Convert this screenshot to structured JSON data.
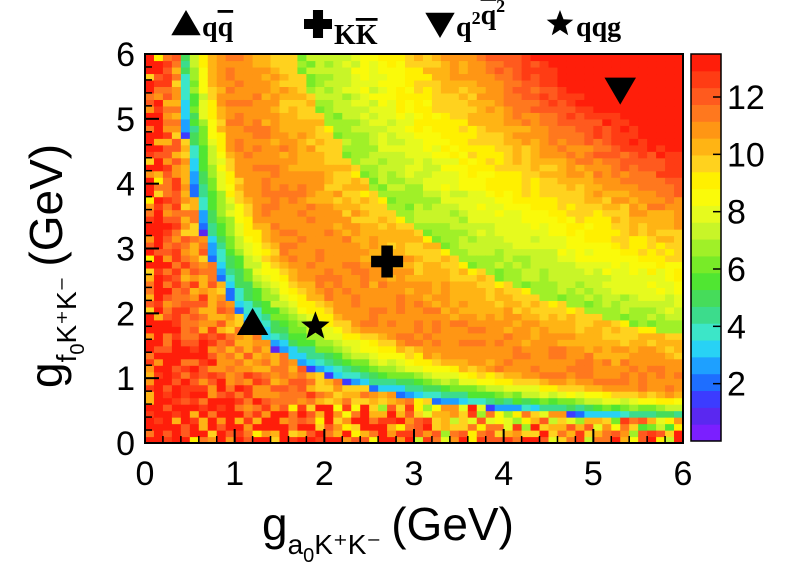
{
  "chart_data": {
    "type": "heatmap",
    "title": "",
    "xlabel": {
      "main": "g",
      "sub1": "a",
      "sub2": "0",
      "rest": "K⁺K⁻",
      "unit": "(GeV)"
    },
    "ylabel": {
      "main": "g",
      "sub1": "f",
      "sub2": "0",
      "rest": "K⁺K⁻",
      "unit": "(GeV)"
    },
    "xlim": [
      0,
      6
    ],
    "ylim": [
      0,
      6
    ],
    "x_ticks": [
      "0",
      "1",
      "2",
      "3",
      "4",
      "5",
      "6"
    ],
    "y_ticks": [
      "0",
      "1",
      "2",
      "3",
      "4",
      "5",
      "6"
    ],
    "grid": false,
    "colorbar": {
      "range": [
        0,
        13.5
      ],
      "ticks": [
        "2",
        "4",
        "6",
        "8",
        "10",
        "12"
      ],
      "colors": [
        "#7b1fff",
        "#5a28f0",
        "#3c3cff",
        "#1e6eff",
        "#1ea0ff",
        "#28d2f5",
        "#3ce6c8",
        "#3cdc8c",
        "#46dc5a",
        "#50e632",
        "#78eb28",
        "#a0f028",
        "#c8f528",
        "#e6fa1e",
        "#fafa0a",
        "#fff000",
        "#ffd21e",
        "#ffb414",
        "#ff9614",
        "#ff781e",
        "#ff5a1e",
        "#ff3c14",
        "#ff1e0a"
      ]
    },
    "legend": [
      {
        "symbol": "triangle-up",
        "label_parts": [
          {
            "t": "q"
          },
          {
            "t": "q",
            "bar": true
          }
        ],
        "x": 1.2,
        "y": 1.85
      },
      {
        "symbol": "cross",
        "label_parts": [
          {
            "t": "K",
            "sub": true
          },
          {
            "t": "K",
            "sub": true,
            "bar": true
          }
        ],
        "x": 2.7,
        "y": 2.8
      },
      {
        "symbol": "triangle-down",
        "label_parts": [
          {
            "t": "q"
          },
          {
            "t": "2",
            "sup": true
          },
          {
            "t": "q",
            "bar": true
          },
          {
            "t": "2",
            "sup": true
          }
        ],
        "x": 5.3,
        "y": 5.45
      },
      {
        "symbol": "star",
        "label_parts": [
          {
            "t": "qqg"
          }
        ],
        "x": 1.9,
        "y": 1.8
      }
    ],
    "model": {
      "description": "",
      "band1_product": 2.1,
      "band2_product": 10.0,
      "grid_bins": 60
    }
  }
}
